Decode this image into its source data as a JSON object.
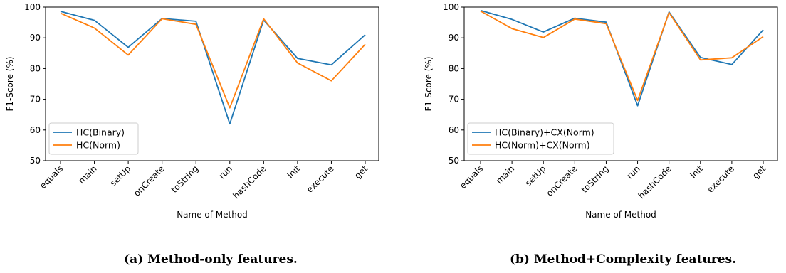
{
  "chart_data": [
    {
      "type": "line",
      "caption": "(a) Method-only features.",
      "xlabel": "Name of Method",
      "ylabel": "F1-Score (%)",
      "ylim": [
        50,
        100
      ],
      "yticks": [
        50,
        60,
        70,
        80,
        90,
        100
      ],
      "grid": false,
      "legend_position": "lower-left",
      "categories": [
        "equals",
        "main",
        "setUp",
        "onCreate",
        "toString",
        "run",
        "hashCode",
        "init",
        "execute",
        "get"
      ],
      "series": [
        {
          "name": "HC(Binary)",
          "color": "#1f77b4",
          "values": [
            98.6,
            95.7,
            86.9,
            96.3,
            95.4,
            62.0,
            95.8,
            83.3,
            81.2,
            91.0
          ]
        },
        {
          "name": "HC(Norm)",
          "color": "#ff7f0e",
          "values": [
            98.0,
            93.2,
            84.4,
            96.2,
            94.4,
            67.2,
            96.2,
            81.8,
            76.0,
            87.9
          ]
        }
      ]
    },
    {
      "type": "line",
      "caption": "(b) Method+Complexity features.",
      "xlabel": "Name of Method",
      "ylabel": "F1-Score (%)",
      "ylim": [
        50,
        100
      ],
      "yticks": [
        50,
        60,
        70,
        80,
        90,
        100
      ],
      "grid": false,
      "legend_position": "lower-left",
      "categories": [
        "equals",
        "main",
        "setUp",
        "onCreate",
        "toString",
        "run",
        "hashCode",
        "init",
        "execute",
        "get"
      ],
      "series": [
        {
          "name": "HC(Binary)+CX(Norm)",
          "color": "#1f77b4",
          "values": [
            98.9,
            96.0,
            91.9,
            96.4,
            95.1,
            67.9,
            98.4,
            83.6,
            81.3,
            92.6
          ]
        },
        {
          "name": "HC(Norm)+CX(Norm)",
          "color": "#ff7f0e",
          "values": [
            98.7,
            93.0,
            90.1,
            96.1,
            94.6,
            69.6,
            98.2,
            82.8,
            83.5,
            90.4
          ]
        }
      ]
    }
  ]
}
